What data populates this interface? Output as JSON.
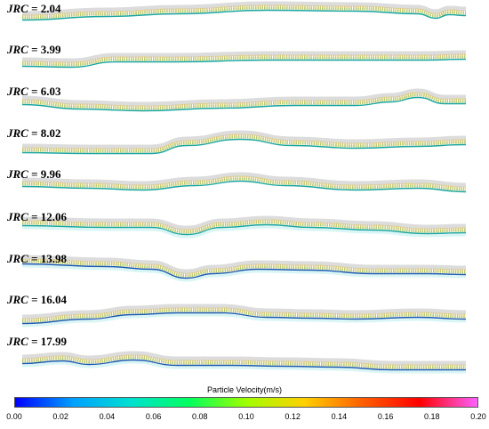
{
  "panels": [
    {
      "prefix": "JRC",
      "value": "= 2.04"
    },
    {
      "prefix": "JRC",
      "value": "= 3.99"
    },
    {
      "prefix": "JRC",
      "value": "= 6.03"
    },
    {
      "prefix": "JRC",
      "value": "= 8.02"
    },
    {
      "prefix": "JRC",
      "value": "= 9.96"
    },
    {
      "prefix": "JRC",
      "value": "= 12.06"
    },
    {
      "prefix": "JRC",
      "value": "= 13.98"
    },
    {
      "prefix": "JRC",
      "value": "= 16.04"
    },
    {
      "prefix": "JRC",
      "value": "= 17.99"
    }
  ],
  "colorbar": {
    "title": "Particle Velocity(m/s)",
    "ticks": [
      "0.00",
      "0.02",
      "0.04",
      "0.06",
      "0.08",
      "0.10",
      "0.12",
      "0.14",
      "0.16",
      "0.18",
      "0.20"
    ],
    "min": 0.0,
    "max": 0.2,
    "colors": [
      "#0000ff",
      "#00a0ff",
      "#00e0d0",
      "#00ff60",
      "#a0ff00",
      "#ffd000",
      "#ff6000",
      "#ff0000",
      "#ff60ff"
    ]
  }
}
